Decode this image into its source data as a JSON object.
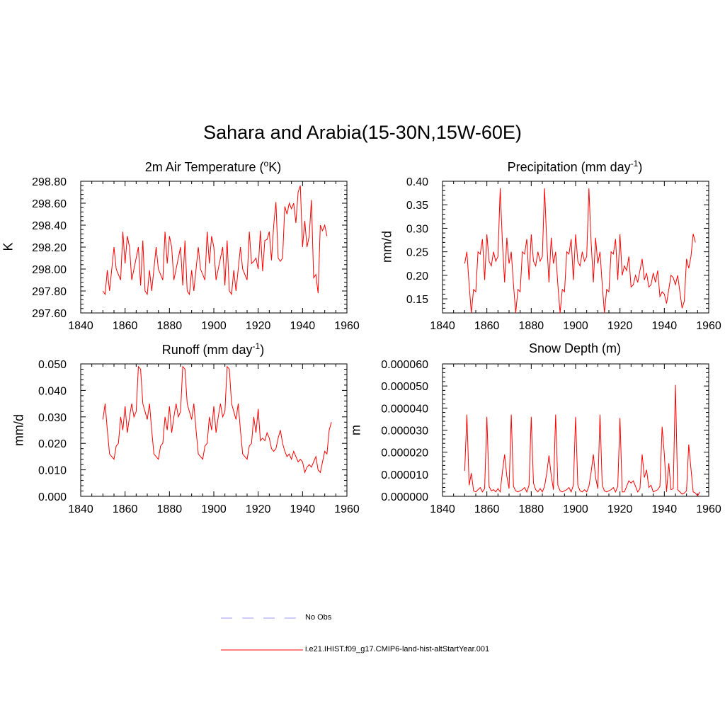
{
  "title": "Sahara and Arabia(15-30N,15W-60E)",
  "legend": {
    "obs_label": "No Obs",
    "obs_color": "#9999ff",
    "model_label": "i.e21.IHIST.f09_g17.CMIP6-land-hist-altStartYear.001",
    "model_color": "#ff0000"
  },
  "chart_data": [
    {
      "type": "line",
      "title": "2m Air Temperature (°K)",
      "title_main": "2m Air Temperature (",
      "title_sup": "o",
      "title_end": "K)",
      "xlabel": "",
      "ylabel": "K",
      "xlim": [
        1840,
        1960
      ],
      "ylim": [
        297.6,
        298.8
      ],
      "xticks": [
        "1840",
        "1860",
        "1880",
        "1900",
        "1920",
        "1940",
        "1960"
      ],
      "yticks": [
        "297.60",
        "297.80",
        "298.00",
        "298.20",
        "298.40",
        "298.60",
        "298.80"
      ],
      "x_start": 1850,
      "series": [
        {
          "name": "i.e21.IHIST.f09_g17.CMIP6-land-hist-altStartYear.001",
          "values": [
            297.8,
            297.77,
            297.99,
            297.8,
            298.0,
            298.2,
            298.0,
            297.95,
            297.9,
            298.34,
            298.05,
            298.3,
            298.2,
            297.9,
            298.0,
            298.1,
            298.2,
            297.85,
            298.26,
            297.8,
            297.77,
            297.99,
            297.8,
            298.0,
            298.2,
            298.0,
            297.95,
            297.9,
            298.34,
            298.05,
            298.3,
            298.2,
            297.9,
            298.0,
            298.1,
            298.2,
            297.85,
            298.26,
            297.8,
            297.77,
            297.99,
            297.8,
            298.0,
            298.2,
            298.0,
            297.95,
            297.9,
            298.34,
            298.05,
            298.3,
            298.2,
            297.9,
            298.0,
            298.1,
            298.2,
            297.85,
            298.26,
            297.8,
            297.77,
            297.99,
            297.8,
            298.0,
            298.2,
            298.0,
            297.95,
            297.9,
            298.34,
            298.05,
            298.07,
            298.1,
            298.0,
            298.35,
            297.98,
            298.26,
            298.27,
            298.34,
            298.08,
            298.4,
            298.61,
            298.1,
            298.07,
            298.1,
            298.57,
            298.5,
            298.6,
            298.55,
            298.6,
            298.42,
            298.7,
            298.76,
            298.2,
            298.44,
            298.2,
            298.3,
            298.63,
            297.92,
            297.95,
            297.78,
            298.4,
            298.35,
            298.4,
            298.3
          ]
        }
      ]
    },
    {
      "type": "line",
      "title": "Precipitation (mm day⁻¹)",
      "title_main": "Precipitation (mm day",
      "title_sup": "-1",
      "title_end": ")",
      "xlabel": "",
      "ylabel": "mm/d",
      "xlim": [
        1840,
        1960
      ],
      "ylim": [
        0.12,
        0.4
      ],
      "xticks": [
        "1840",
        "1860",
        "1880",
        "1900",
        "1920",
        "1940",
        "1960"
      ],
      "yticks": [
        "0.15",
        "0.20",
        "0.25",
        "0.30",
        "0.35",
        "0.40"
      ],
      "ytick_values": [
        0.15,
        0.2,
        0.25,
        0.3,
        0.35,
        0.4
      ],
      "x_start": 1850,
      "series": [
        {
          "name": "i.e21.IHIST.f09_g17.CMIP6-land-hist-altStartYear.001",
          "values": [
            0.225,
            0.25,
            0.18,
            0.12,
            0.17,
            0.165,
            0.25,
            0.245,
            0.277,
            0.19,
            0.287,
            0.23,
            0.22,
            0.25,
            0.23,
            0.24,
            0.385,
            0.27,
            0.185,
            0.28,
            0.225,
            0.25,
            0.18,
            0.12,
            0.17,
            0.165,
            0.25,
            0.245,
            0.277,
            0.19,
            0.287,
            0.23,
            0.22,
            0.25,
            0.23,
            0.24,
            0.385,
            0.27,
            0.185,
            0.28,
            0.225,
            0.25,
            0.18,
            0.12,
            0.17,
            0.165,
            0.25,
            0.245,
            0.277,
            0.19,
            0.287,
            0.23,
            0.22,
            0.25,
            0.23,
            0.24,
            0.385,
            0.27,
            0.185,
            0.28,
            0.225,
            0.25,
            0.18,
            0.12,
            0.17,
            0.165,
            0.25,
            0.245,
            0.277,
            0.19,
            0.287,
            0.2,
            0.22,
            0.21,
            0.24,
            0.175,
            0.18,
            0.2,
            0.185,
            0.21,
            0.235,
            0.19,
            0.205,
            0.175,
            0.18,
            0.205,
            0.185,
            0.21,
            0.155,
            0.165,
            0.16,
            0.14,
            0.17,
            0.2,
            0.195,
            0.18,
            0.2,
            0.165,
            0.13,
            0.145,
            0.235,
            0.215,
            0.24,
            0.288,
            0.27
          ]
        }
      ]
    },
    {
      "type": "line",
      "title": "Runoff (mm day⁻¹)",
      "title_main": "Runoff (mm day",
      "title_sup": "-1",
      "title_end": ")",
      "xlabel": "",
      "ylabel": "mm/d",
      "xlim": [
        1840,
        1960
      ],
      "ylim": [
        0,
        0.05
      ],
      "xticks": [
        "1840",
        "1860",
        "1880",
        "1900",
        "1920",
        "1940",
        "1960"
      ],
      "yticks": [
        "0.000",
        "0.010",
        "0.020",
        "0.030",
        "0.040",
        "0.050"
      ],
      "x_start": 1850,
      "series": [
        {
          "name": "i.e21.IHIST.f09_g17.CMIP6-land-hist-altStartYear.001",
          "values": [
            0.029,
            0.035,
            0.025,
            0.016,
            0.015,
            0.014,
            0.019,
            0.02,
            0.03,
            0.025,
            0.034,
            0.024,
            0.03,
            0.035,
            0.03,
            0.032,
            0.049,
            0.048,
            0.035,
            0.032,
            0.029,
            0.035,
            0.025,
            0.016,
            0.015,
            0.014,
            0.019,
            0.02,
            0.03,
            0.025,
            0.034,
            0.024,
            0.03,
            0.035,
            0.03,
            0.032,
            0.049,
            0.048,
            0.035,
            0.032,
            0.029,
            0.035,
            0.025,
            0.016,
            0.015,
            0.014,
            0.019,
            0.02,
            0.03,
            0.025,
            0.034,
            0.024,
            0.03,
            0.035,
            0.03,
            0.032,
            0.049,
            0.048,
            0.035,
            0.032,
            0.029,
            0.035,
            0.025,
            0.016,
            0.015,
            0.014,
            0.019,
            0.02,
            0.03,
            0.024,
            0.033,
            0.021,
            0.022,
            0.021,
            0.024,
            0.022,
            0.018,
            0.017,
            0.018,
            0.022,
            0.025,
            0.02,
            0.017,
            0.015,
            0.016,
            0.014,
            0.017,
            0.015,
            0.013,
            0.014,
            0.013,
            0.009,
            0.011,
            0.012,
            0.011,
            0.013,
            0.015,
            0.01,
            0.009,
            0.013,
            0.017,
            0.016,
            0.025,
            0.028
          ]
        }
      ]
    },
    {
      "type": "line",
      "title": "Snow Depth (m)",
      "title_main": "Snow Depth (m)",
      "title_sup": "",
      "title_end": "",
      "xlabel": "",
      "ylabel": "m",
      "xlim": [
        1840,
        1960
      ],
      "ylim": [
        0,
        6e-05
      ],
      "xticks": [
        "1840",
        "1860",
        "1880",
        "1900",
        "1920",
        "1940",
        "1960"
      ],
      "yticks": [
        "0.000000",
        "0.000010",
        "0.000020",
        "0.000030",
        "0.000040",
        "0.000050",
        "0.000060"
      ],
      "x_start": 1850,
      "series": [
        {
          "name": "i.e21.IHIST.f09_g17.CMIP6-land-hist-altStartYear.001",
          "values": [
            1.15e-05,
            3.7e-05,
            5e-06,
            1.05e-05,
            2.5e-06,
            2e-06,
            3e-06,
            4e-06,
            2e-06,
            3.5e-06,
            3.6e-05,
            4.5e-06,
            2.5e-06,
            3e-06,
            2e-06,
            3.5e-06,
            2e-06,
            1.1e-05,
            1.9e-05,
            9e-06,
            3.5e-06,
            3.7e-05,
            4.5e-06,
            2.5e-06,
            2e-06,
            2.5e-06,
            3e-06,
            4e-06,
            2e-06,
            5e-06,
            3.6e-05,
            6e-06,
            3e-06,
            2e-06,
            3.5e-06,
            2e-06,
            4.5e-06,
            1.05e-05,
            1.85e-05,
            9.5e-06,
            3e-06,
            3.7e-05,
            5e-06,
            2.5e-06,
            2e-06,
            2.5e-06,
            3e-06,
            4e-06,
            2e-06,
            5e-06,
            3.6e-05,
            5e-06,
            2.5e-06,
            2e-06,
            3e-06,
            2e-06,
            4.5e-06,
            1.1e-05,
            1.9e-05,
            8.5e-06,
            3.5e-06,
            3.7e-05,
            5e-06,
            2.5e-06,
            2e-06,
            2.5e-06,
            3e-06,
            4e-06,
            2e-06,
            4.5e-06,
            3.55e-05,
            2e-06,
            2e-06,
            4.5e-06,
            7e-06,
            6e-06,
            7e-06,
            4.5e-06,
            2e-06,
            3.5e-06,
            1.9e-05,
            8.5e-06,
            1.2e-05,
            4e-06,
            5e-06,
            2e-06,
            2.5e-06,
            3e-06,
            4.5e-06,
            3.15e-05,
            1.9e-05,
            2e-06,
            1.5e-05,
            3e-06,
            3.5e-06,
            5.05e-05,
            3e-06,
            2e-06,
            1e-06,
            1.5e-06,
            2.5e-06,
            2.35e-05,
            1.25e-05,
            2e-06,
            1.5e-06,
            2e-07,
            2e-06
          ]
        }
      ]
    }
  ]
}
